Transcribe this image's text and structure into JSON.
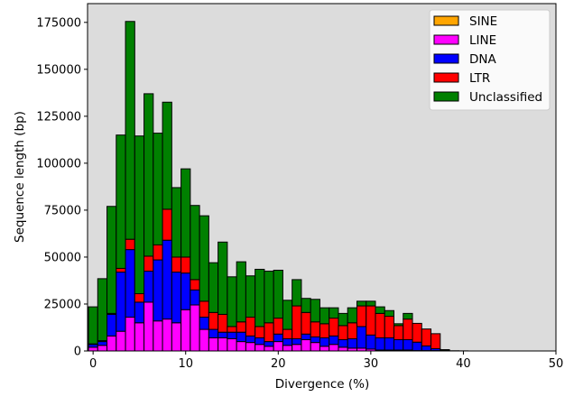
{
  "chart_data": {
    "type": "bar",
    "stacked": true,
    "title": "",
    "xlabel": "Divergence (%)",
    "ylabel": "Sequence length (bp)",
    "xlim": [
      -0.6,
      50
    ],
    "ylim": [
      0,
      185000
    ],
    "xticks": [
      0,
      10,
      20,
      30,
      40,
      50
    ],
    "yticks": [
      0,
      25000,
      50000,
      75000,
      100000,
      125000,
      150000,
      175000
    ],
    "grid": false,
    "background": "#dcdcdc",
    "legend_position": "top-right",
    "x": [
      0,
      1,
      2,
      3,
      4,
      5,
      6,
      7,
      8,
      9,
      10,
      11,
      12,
      13,
      14,
      15,
      16,
      17,
      18,
      19,
      20,
      21,
      22,
      23,
      24,
      25,
      26,
      27,
      28,
      29,
      30,
      31,
      32,
      33,
      34,
      35,
      36,
      37,
      38,
      39,
      40
    ],
    "series": [
      {
        "name": "SINE",
        "color": "#ffa500",
        "values": [
          0,
          0,
          0,
          0,
          0,
          0,
          0,
          0,
          0,
          0,
          0,
          0,
          0,
          0,
          0,
          0,
          0,
          0,
          0,
          0,
          0,
          0,
          0,
          0,
          0,
          0,
          0,
          0,
          0,
          0,
          0,
          0,
          0,
          0,
          0,
          0,
          0,
          0,
          0,
          0,
          0
        ]
      },
      {
        "name": "LINE",
        "color": "#ff00ff",
        "values": [
          2000,
          3000,
          8000,
          10500,
          18000,
          15000,
          26000,
          16000,
          17000,
          15000,
          22000,
          24500,
          11500,
          7000,
          7000,
          6500,
          5000,
          4500,
          3500,
          2500,
          5000,
          3000,
          3500,
          6000,
          4500,
          2500,
          3500,
          2000,
          1500,
          1500,
          1000,
          500,
          500,
          500,
          500,
          200,
          200,
          200,
          0,
          0,
          0
        ]
      },
      {
        "name": "DNA",
        "color": "#0000ff",
        "values": [
          1500,
          2000,
          11500,
          31500,
          36000,
          11000,
          16500,
          32500,
          42000,
          27000,
          19500,
          8000,
          6500,
          4500,
          3000,
          3500,
          5000,
          3500,
          3500,
          2500,
          4000,
          3500,
          3000,
          3000,
          3000,
          4500,
          4500,
          4000,
          5000,
          11500,
          7500,
          6500,
          6500,
          5500,
          5500,
          4500,
          2500,
          1000,
          200,
          100,
          50
        ]
      },
      {
        "name": "LTR",
        "color": "#ff0000",
        "values": [
          300,
          500,
          500,
          2000,
          5500,
          4500,
          8000,
          8000,
          16500,
          8000,
          8500,
          5500,
          8500,
          9000,
          9500,
          3000,
          5500,
          10000,
          6000,
          10000,
          8500,
          5000,
          17500,
          11500,
          8000,
          7500,
          9500,
          7500,
          8500,
          11000,
          15500,
          13000,
          11500,
          7500,
          11000,
          10000,
          9000,
          8000,
          0,
          0,
          0
        ]
      },
      {
        "name": "Unclassified",
        "color": "#008000",
        "values": [
          19700,
          33000,
          57000,
          71000,
          116000,
          84000,
          86500,
          59500,
          57000,
          37000,
          47000,
          39500,
          45500,
          26500,
          38500,
          26500,
          32000,
          22000,
          30500,
          27500,
          25500,
          15500,
          14000,
          7500,
          12000,
          8500,
          5500,
          6500,
          8000,
          2500,
          2500,
          3500,
          3000,
          1000,
          3000,
          0,
          0,
          0,
          500,
          0,
          0
        ]
      }
    ]
  }
}
